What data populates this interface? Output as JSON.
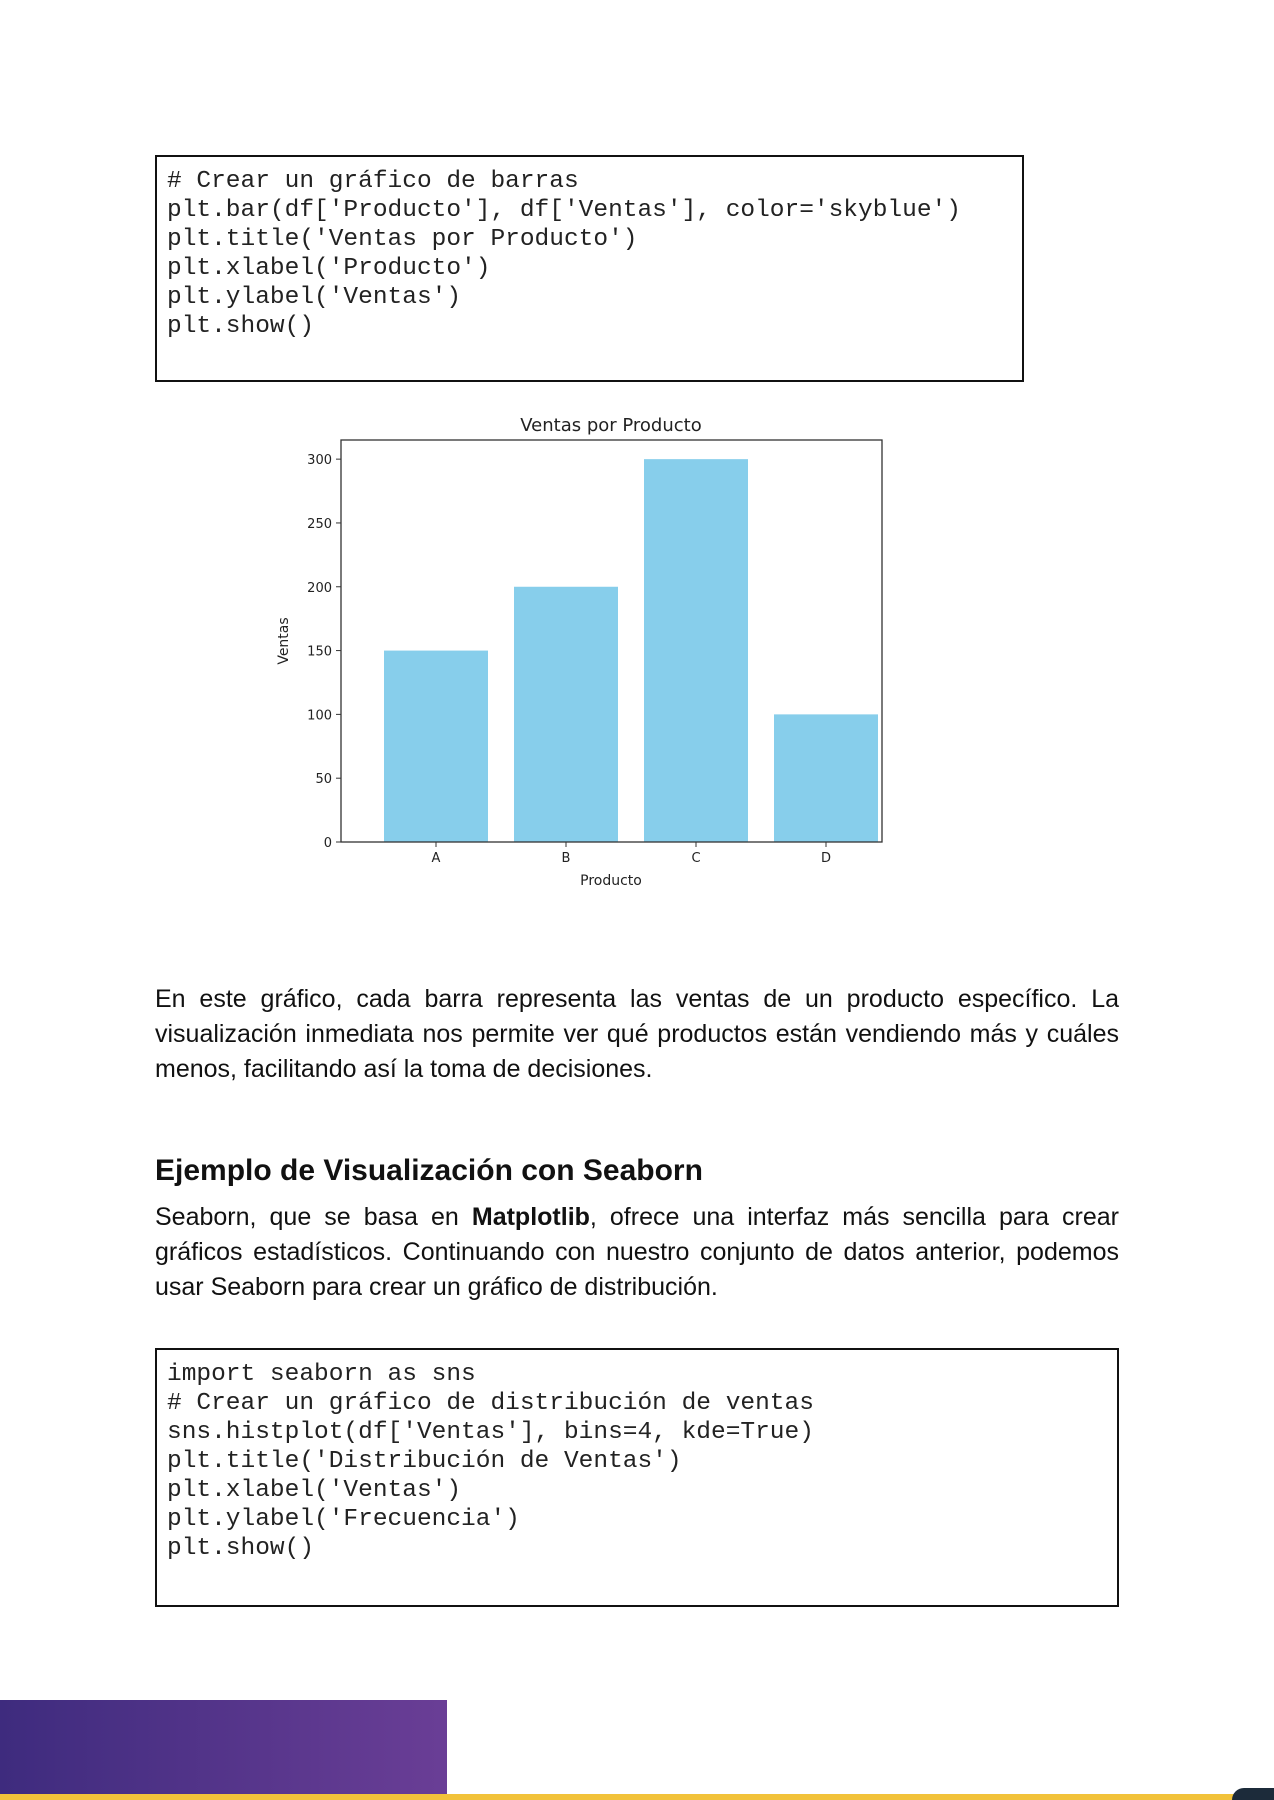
{
  "code_block_1": {
    "lines": [
      "# Crear un gráfico de barras",
      "plt.bar(df['Producto'], df['Ventas'], color='skyblue')",
      "plt.title('Ventas por Producto')",
      "plt.xlabel('Producto')",
      "plt.ylabel('Ventas')",
      "plt.show()"
    ]
  },
  "chart_data": {
    "type": "bar",
    "title": "Ventas por Producto",
    "xlabel": "Producto",
    "ylabel": "Ventas",
    "categories": [
      "A",
      "B",
      "C",
      "D"
    ],
    "values": [
      150,
      200,
      300,
      100
    ],
    "yticks": [
      0,
      50,
      100,
      150,
      200,
      250,
      300
    ],
    "ylim": [
      0,
      315
    ],
    "bar_color": "#87ceeb",
    "grid": false
  },
  "paragraph_1": "En este gráfico, cada barra representa las ventas de un producto específico. La visualización inmediata nos permite ver qué productos están vendiendo más y cuáles menos, facilitando así la toma de decisiones.",
  "heading": "Ejemplo de Visualización con Seaborn",
  "paragraph_2": {
    "before": "Seaborn, que se basa en ",
    "bold": "Matplotlib",
    "after": ", ofrece una interfaz más sencilla para crear gráficos estadísticos. Continuando con nuestro conjunto de datos anterior, podemos usar Seaborn para crear un gráfico de distribución."
  },
  "code_block_2": {
    "lines": [
      "import seaborn as sns",
      "# Crear un gráfico de distribución de ventas",
      "sns.histplot(df['Ventas'], bins=4, kde=True)",
      "plt.title('Distribución de Ventas')",
      "plt.xlabel('Ventas')",
      "plt.ylabel('Frecuencia')",
      "plt.show()"
    ]
  }
}
